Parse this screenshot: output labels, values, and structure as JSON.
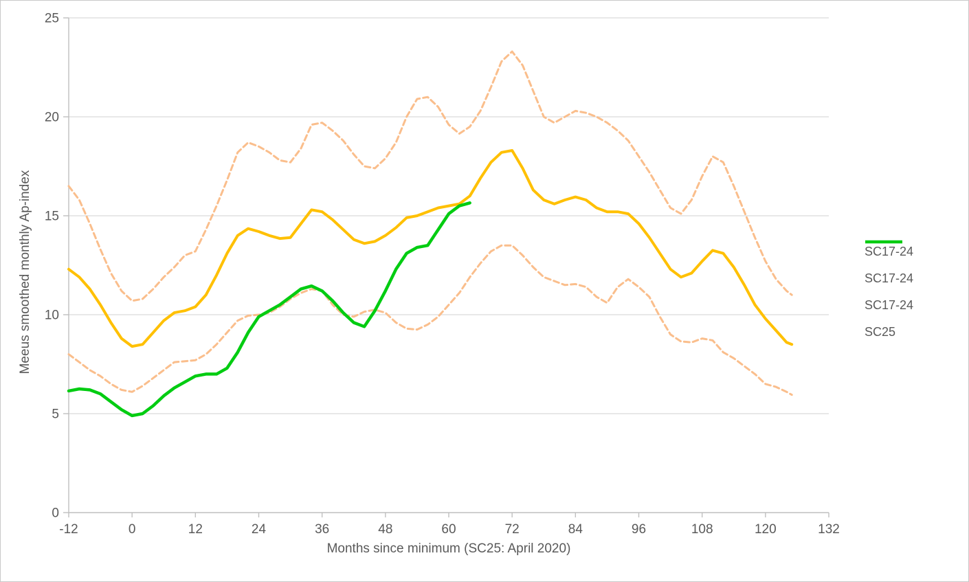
{
  "page": {
    "background": "#ffffff",
    "border_color": "#c8c8c8"
  },
  "chart_data": {
    "type": "line",
    "title": "",
    "xlabel": "Months since minimum (SC25: April 2020)",
    "ylabel": "Meeus smoothed monthly Ap-index",
    "xlim": [
      -12,
      132
    ],
    "ylim": [
      0,
      25
    ],
    "xticks": [
      -12,
      0,
      12,
      24,
      36,
      48,
      60,
      72,
      84,
      96,
      108,
      120,
      132
    ],
    "yticks": [
      0,
      5,
      10,
      15,
      20,
      25
    ],
    "grid": "horizontal-only",
    "legend_position": "right-middle",
    "axis_text_color": "#595959",
    "gridline_color": "#d9d9d9",
    "axis_line_color": "#bfbfbf",
    "series": [
      {
        "name": "SC17-24",
        "color": "#FFC000",
        "dash": "solid",
        "width": 4,
        "x": [
          -12,
          -10,
          -8,
          -6,
          -4,
          -2,
          0,
          2,
          4,
          6,
          8,
          10,
          12,
          14,
          16,
          18,
          20,
          22,
          24,
          26,
          28,
          30,
          32,
          34,
          36,
          38,
          40,
          42,
          44,
          46,
          48,
          50,
          52,
          54,
          56,
          58,
          60,
          62,
          64,
          66,
          68,
          70,
          72,
          74,
          76,
          78,
          80,
          82,
          84,
          86,
          88,
          90,
          92,
          94,
          96,
          98,
          100,
          102,
          104,
          106,
          108,
          110,
          112,
          114,
          116,
          118,
          120,
          122,
          124,
          125
        ],
        "values": [
          12.3,
          11.9,
          11.3,
          10.5,
          9.6,
          8.8,
          8.4,
          8.5,
          9.1,
          9.7,
          10.1,
          10.2,
          10.4,
          11.0,
          12.0,
          13.1,
          14.0,
          14.35,
          14.2,
          14.0,
          13.85,
          13.9,
          14.6,
          15.3,
          15.2,
          14.8,
          14.3,
          13.8,
          13.6,
          13.7,
          14.0,
          14.4,
          14.9,
          15.0,
          15.2,
          15.4,
          15.5,
          15.6,
          16.0,
          16.9,
          17.7,
          18.2,
          18.3,
          17.4,
          16.3,
          15.8,
          15.6,
          15.8,
          15.95,
          15.8,
          15.4,
          15.2,
          15.2,
          15.1,
          14.6,
          13.9,
          13.1,
          12.3,
          11.9,
          12.1,
          12.7,
          13.25,
          13.1,
          12.4,
          11.5,
          10.5,
          9.8,
          9.2,
          8.6,
          8.5
        ]
      },
      {
        "name": "SC17-24",
        "color": "#FABE8C",
        "dash": "dashed",
        "width": 3,
        "x": [
          -12,
          -10,
          -8,
          -6,
          -4,
          -2,
          0,
          2,
          4,
          6,
          8,
          10,
          12,
          14,
          16,
          18,
          20,
          22,
          24,
          26,
          28,
          30,
          32,
          34,
          36,
          38,
          40,
          42,
          44,
          46,
          48,
          50,
          52,
          54,
          56,
          58,
          60,
          62,
          64,
          66,
          68,
          70,
          72,
          74,
          76,
          78,
          80,
          82,
          84,
          86,
          88,
          90,
          92,
          94,
          96,
          98,
          100,
          102,
          104,
          106,
          108,
          110,
          112,
          114,
          116,
          118,
          120,
          122,
          124,
          125
        ],
        "values": [
          16.5,
          15.8,
          14.6,
          13.3,
          12.1,
          11.2,
          10.7,
          10.8,
          11.3,
          11.9,
          12.4,
          13.0,
          13.2,
          14.3,
          15.5,
          16.8,
          18.2,
          18.7,
          18.5,
          18.2,
          17.8,
          17.7,
          18.4,
          19.6,
          19.7,
          19.3,
          18.8,
          18.1,
          17.5,
          17.4,
          17.9,
          18.7,
          20.0,
          20.9,
          21.0,
          20.5,
          19.6,
          19.15,
          19.5,
          20.3,
          21.5,
          22.8,
          23.3,
          22.6,
          21.3,
          20.0,
          19.7,
          20.0,
          20.3,
          20.2,
          20.0,
          19.7,
          19.3,
          18.8,
          18.0,
          17.2,
          16.3,
          15.4,
          15.1,
          15.8,
          17.0,
          18.0,
          17.7,
          16.5,
          15.2,
          13.9,
          12.7,
          11.8,
          11.2,
          11.0
        ]
      },
      {
        "name": "SC17-24",
        "color": "#FABE8C",
        "dash": "dashed",
        "width": 3,
        "x": [
          -12,
          -10,
          -8,
          -6,
          -4,
          -2,
          0,
          2,
          4,
          6,
          8,
          10,
          12,
          14,
          16,
          18,
          20,
          22,
          24,
          26,
          28,
          30,
          32,
          34,
          36,
          38,
          40,
          42,
          44,
          46,
          48,
          50,
          52,
          54,
          56,
          58,
          60,
          62,
          64,
          66,
          68,
          70,
          72,
          74,
          76,
          78,
          80,
          82,
          84,
          86,
          88,
          90,
          92,
          94,
          96,
          98,
          100,
          102,
          104,
          106,
          108,
          110,
          112,
          114,
          116,
          118,
          120,
          122,
          124,
          125
        ],
        "values": [
          8.0,
          7.6,
          7.2,
          6.9,
          6.5,
          6.2,
          6.1,
          6.4,
          6.8,
          7.2,
          7.6,
          7.65,
          7.7,
          8.0,
          8.5,
          9.1,
          9.7,
          9.95,
          10.0,
          10.1,
          10.4,
          10.8,
          11.1,
          11.3,
          11.2,
          10.5,
          10.0,
          9.9,
          10.15,
          10.25,
          10.1,
          9.6,
          9.3,
          9.25,
          9.5,
          9.9,
          10.5,
          11.1,
          11.9,
          12.6,
          13.2,
          13.5,
          13.5,
          13.0,
          12.4,
          11.9,
          11.7,
          11.5,
          11.55,
          11.4,
          10.9,
          10.6,
          11.4,
          11.8,
          11.4,
          10.9,
          9.9,
          9.0,
          8.65,
          8.6,
          8.8,
          8.7,
          8.1,
          7.8,
          7.4,
          7.0,
          6.5,
          6.35,
          6.1,
          5.95
        ]
      },
      {
        "name": "SC25",
        "color": "#00CC11",
        "dash": "solid",
        "width": 4.5,
        "x": [
          -12,
          -10,
          -8,
          -6,
          -4,
          -2,
          0,
          2,
          4,
          6,
          8,
          10,
          12,
          14,
          16,
          18,
          20,
          22,
          24,
          26,
          28,
          30,
          32,
          34,
          36,
          38,
          40,
          42,
          44,
          46,
          48,
          50,
          52,
          54,
          56,
          58,
          60,
          62,
          64
        ],
        "values": [
          6.15,
          6.25,
          6.2,
          6.0,
          5.6,
          5.2,
          4.9,
          5.0,
          5.4,
          5.9,
          6.3,
          6.6,
          6.9,
          7.0,
          7.0,
          7.3,
          8.1,
          9.1,
          9.9,
          10.2,
          10.5,
          10.9,
          11.3,
          11.45,
          11.2,
          10.7,
          10.1,
          9.6,
          9.4,
          10.2,
          11.2,
          12.3,
          13.1,
          13.4,
          13.5,
          14.3,
          15.1,
          15.5,
          15.65
        ]
      }
    ]
  }
}
